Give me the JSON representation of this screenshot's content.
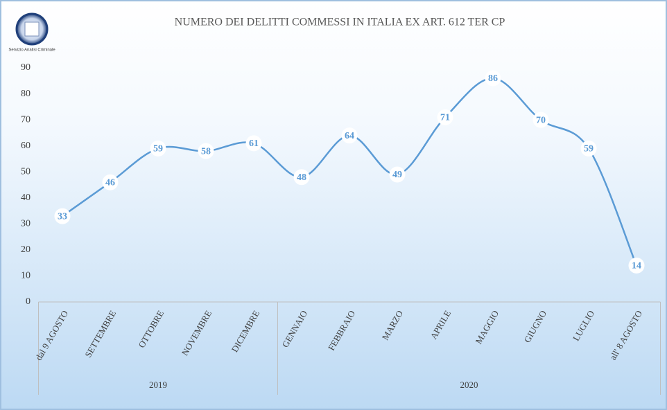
{
  "chart_data": {
    "type": "line",
    "title": "NUMERO DEI DELITTI COMMESSI IN ITALIA EX ART. 612 TER CP",
    "logo_text": "Servizio Analisi Criminale",
    "groups": [
      {
        "label": "2019",
        "categories": [
          "dal 9 AGOSTO",
          "SETTEMBRE",
          "OTTOBRE",
          "NOVEMBRE",
          "DICEMBRE"
        ]
      },
      {
        "label": "2020",
        "categories": [
          "GENNAIO",
          "FEBBRAIO",
          "MARZO",
          "APRILE",
          "MAGGIO",
          "GIUGNO",
          "LUGLIO",
          "all' 8 AGOSTO"
        ]
      }
    ],
    "values": [
      33,
      46,
      59,
      58,
      61,
      48,
      64,
      49,
      71,
      86,
      70,
      59,
      14
    ],
    "color": "#5b9bd5",
    "ylim": [
      0,
      90
    ],
    "yticks": [
      0,
      10,
      20,
      30,
      40,
      50,
      60,
      70,
      80,
      90
    ],
    "smooth": true
  }
}
